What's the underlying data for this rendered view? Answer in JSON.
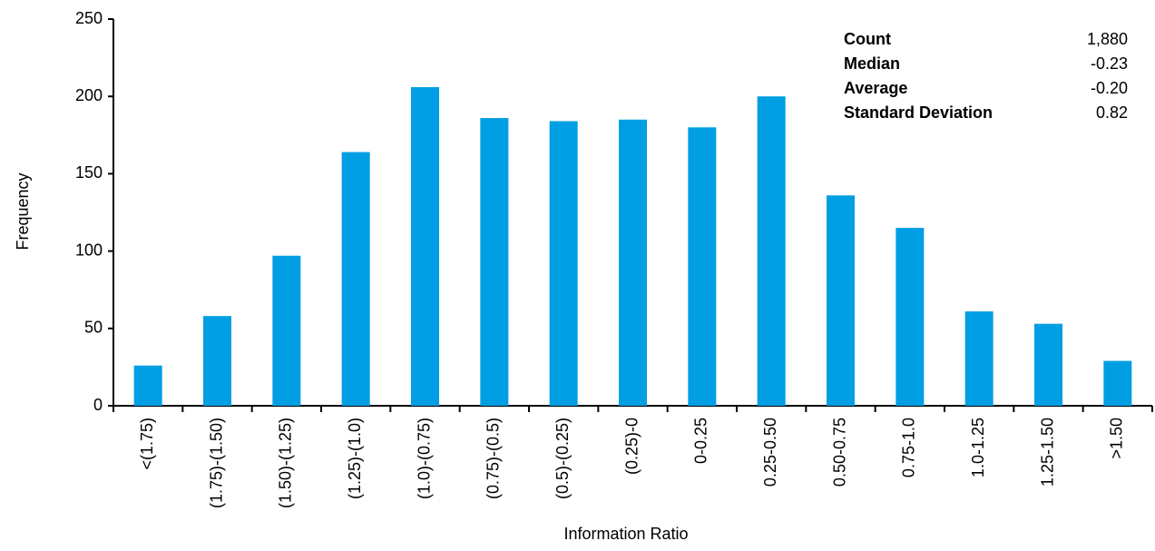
{
  "chart_data": {
    "type": "bar",
    "xlabel": "Information Ratio",
    "ylabel": "Frequency",
    "categories": [
      "<(1.75)",
      "(1.75)-(1.50)",
      "(1.50)-(1.25)",
      "(1.25)-(1.0)",
      "(1.0)-(0.75)",
      "(0.75)-(0.5)",
      "(0.5)-(0.25)",
      "(0.25)-0",
      "0-0.25",
      "0.25-0.50",
      "0.50-0.75",
      "0.75-1.0",
      "1.0-1.25",
      "1.25-1.50",
      ">1.50"
    ],
    "values": [
      26,
      58,
      97,
      164,
      206,
      186,
      184,
      185,
      180,
      200,
      136,
      115,
      61,
      53,
      29
    ],
    "color": "#009fe3",
    "ylim": [
      0,
      250
    ],
    "yticks": [
      0,
      50,
      100,
      150,
      200,
      250
    ],
    "grid": false,
    "stats": [
      {
        "label": "Count",
        "value": "1,880"
      },
      {
        "label": "Median",
        "value": "-0.23"
      },
      {
        "label": "Average",
        "value": "-0.20"
      },
      {
        "label": "Standard Deviation",
        "value": "0.82"
      }
    ]
  }
}
